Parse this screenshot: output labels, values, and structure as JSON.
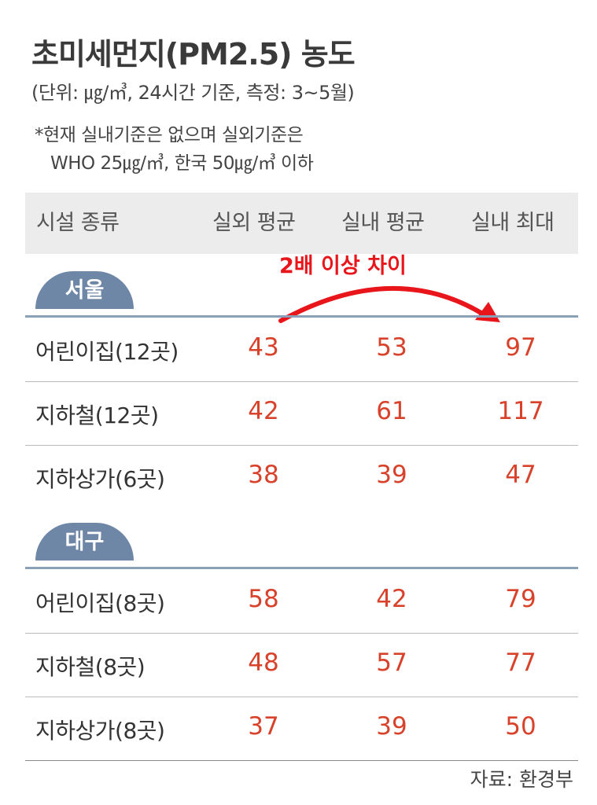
{
  "chart_data": {
    "type": "table",
    "title": "초미세먼지(PM2.5) 농도",
    "subtitle": "(단위: ㎍/㎥, 24시간 기준, 측정: 3~5월)",
    "note_lines": [
      "*현재 실내기준은 없으며 실외기준은",
      "WHO 25㎍/㎥, 한국 50㎍/㎥ 이하"
    ],
    "columns": [
      "시설 종류",
      "실외 평균",
      "실내 평균",
      "실내 최대"
    ],
    "groups": [
      {
        "name": "서울",
        "rows": [
          {
            "label": "어린이집(12곳)",
            "values": [
              43,
              53,
              97
            ]
          },
          {
            "label": "지하철(12곳)",
            "values": [
              42,
              61,
              117
            ]
          },
          {
            "label": "지하상가(6곳)",
            "values": [
              38,
              39,
              47
            ]
          }
        ]
      },
      {
        "name": "대구",
        "rows": [
          {
            "label": "어린이집(8곳)",
            "values": [
              58,
              42,
              79
            ]
          },
          {
            "label": "지하철(8곳)",
            "values": [
              48,
              57,
              77
            ]
          },
          {
            "label": "지하상가(8곳)",
            "values": [
              37,
              39,
              50
            ]
          }
        ]
      }
    ],
    "annotation": "2배 이상 차이",
    "source": "자료: 환경부"
  },
  "colors": {
    "value": "#d8412a",
    "annotation": "#e8161b",
    "tag": "#6f87a6",
    "header_bg": "#ececec"
  }
}
